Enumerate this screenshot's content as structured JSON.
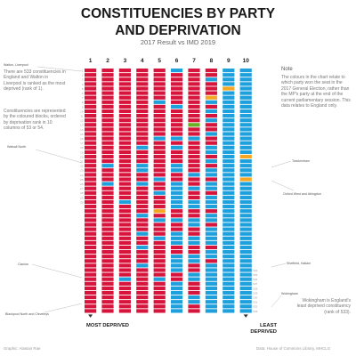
{
  "header": {
    "title_line1": "CONSTITUENCIES BY PARTY",
    "title_line2": "AND DEPRIVATION",
    "subtitle": "2017 Result vs IMD 2019"
  },
  "left_text": {
    "para1": "There are 533 constituencies in England and Walton in Liverpool is ranked as the most deprived (rank of 1).",
    "para2": "Constituencies are represented by the coloured blocks, ordered by deprivation rank in 10 columns of 53 or 54."
  },
  "note": {
    "title": "Note",
    "body": "The colours in the chart relate to which party won the seat in the 2017 General Election, rather than the MP's party at the end of the current parliamentary session. This data relates to England only."
  },
  "callouts": {
    "walton": "Walton, Liverpool",
    "walsall": "Walsall North",
    "twickenham": "Twickenham",
    "oxford": "Oxford West and Abingdon",
    "clacton": "Clacton",
    "blackpool": "Blackpool North and Cleveleys",
    "sheffield": "Sheffield, Hallam",
    "wokingham": "Wokingham",
    "wokingham_note": "Wokingham is England's least deprived constituency (rank of 533)."
  },
  "axis": {
    "most": "MOST DEPRIVED",
    "least": "LEAST DEPRIVED"
  },
  "footer": {
    "credit": "Graphic: Alastair Rae",
    "source": "Data: House of Commons Library, MHCLG"
  },
  "colors": {
    "labour": "#d7143c",
    "conservative": "#1ea0dc",
    "libdem": "#f5a623",
    "green": "#6ab023",
    "other": "#243a6b"
  },
  "chart_data": {
    "type": "heatmap",
    "columns": [
      "1",
      "2",
      "3",
      "4",
      "5",
      "6",
      "7",
      "8",
      "9",
      "10"
    ],
    "row_labels_first": [
      "1",
      "2",
      "3",
      "4",
      "5",
      "6",
      "7",
      "8",
      "9",
      "10",
      "11",
      "12",
      "13",
      "14",
      "15",
      "16",
      "17",
      "18",
      "19",
      "20",
      "21",
      "22",
      "23",
      "24",
      "25",
      "26",
      "27",
      "28",
      "29",
      "30"
    ],
    "row_labels_last": [
      "524",
      "525",
      "526",
      "527",
      "528",
      "529",
      "530",
      "531",
      "532",
      "533"
    ],
    "rows": 54,
    "legend_codes": {
      "L": "labour",
      "C": "conservative",
      "D": "libdem",
      "G": "green",
      "O": "other"
    },
    "cells": [
      "LLLLLLLLLLLLLLLLLLLLLLLLLLLLLLLLLLLLLLLLLLLLLLLLLLLLLL",
      "LLLLLLLLLLLLLLLLLLLLLCLLLCLLLLLLLLLLLLLLLLLLLLLLLLLLL",
      "LLLLLLLLLLLLLLLLLLLLLLLLLLLLLCLLLLLLLLLLLLLLLLCLLLLLL",
      "LLLLLLLLLLLLLLLLLCLLLCCLLCLLLLLLCLLLCLLCLLLCLLLLLLLLL",
      "LLLLLLLCLLLLLLLCLLLLLLLLCLLCLLLDLCLLLCLLLLLLLLCLLLLLL",
      "CLLLLLLLCLLLLLLCLCLLLCCLLCCCCCCLLCLLCCCLLCCCCLLCCCCCC",
      "LLLLLLLLLLLLGLLCLLLLLLLCLLCLLCCLLCCLLCCLLCCLLCCLLLCCL",
      "LLCLLLDCLCLCLLCLLCCLCLCCLCCLCCCLCCLCCCCLCCLCCCCCCCCCC",
      "CCCCDCCCCCCCCCCCCCCCCCCCCCCCCCCCCCCCCCCCCCCCCCCCCCCCC",
      "CCCCCCCCCCCCCCCCCCCDCCCCDCCCCCCCCCCCCCCCCCCCCCCCCCCC"
    ]
  }
}
